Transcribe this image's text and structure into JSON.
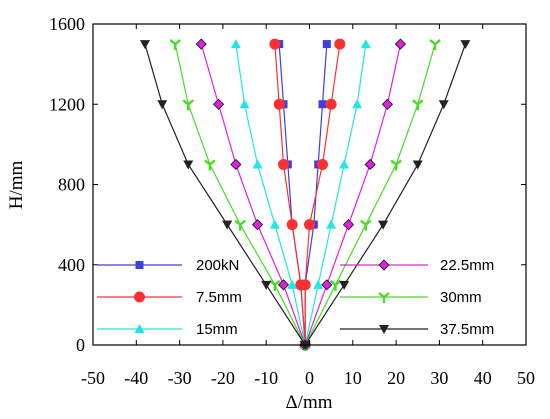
{
  "chart_data": {
    "type": "line",
    "xlabel": "Δ/mm",
    "ylabel": "H/mm",
    "xlim": [
      -50,
      50
    ],
    "ylim": [
      0,
      1600
    ],
    "xticks": [
      -50,
      -40,
      -30,
      -20,
      -10,
      0,
      10,
      20,
      30,
      40,
      50
    ],
    "xtick_labels": [
      "-50",
      "-40",
      "-30",
      "-20",
      "-10",
      "0",
      "10",
      "20",
      "30",
      "40",
      "50"
    ],
    "yticks": [
      0,
      400,
      800,
      1200,
      1600
    ],
    "ytick_labels": [
      "0",
      "400",
      "800",
      "1200",
      "1600"
    ],
    "grid": false,
    "legend_position": "bottom",
    "series": [
      {
        "name": "200kN",
        "color": "#3f3fdf",
        "marker": "square",
        "left": [
          [
            -1,
            0
          ],
          [
            -2,
            300
          ],
          [
            -4,
            600
          ],
          [
            -5,
            900
          ],
          [
            -6,
            1200
          ],
          [
            -7,
            1500
          ]
        ],
        "right": [
          [
            -1,
            0
          ],
          [
            -1,
            300
          ],
          [
            1,
            600
          ],
          [
            2,
            900
          ],
          [
            3,
            1200
          ],
          [
            4,
            1500
          ]
        ]
      },
      {
        "name": "7.5mm",
        "color": "#ff3030",
        "marker": "circle",
        "left": [
          [
            -1,
            0
          ],
          [
            -2,
            300
          ],
          [
            -4,
            600
          ],
          [
            -6,
            900
          ],
          [
            -7,
            1200
          ],
          [
            -8,
            1500
          ]
        ],
        "right": [
          [
            -1,
            0
          ],
          [
            -1,
            300
          ],
          [
            0,
            600
          ],
          [
            3,
            900
          ],
          [
            5,
            1200
          ],
          [
            7,
            1500
          ]
        ]
      },
      {
        "name": "15mm",
        "color": "#22e6e6",
        "marker": "triangle-up",
        "left": [
          [
            -1,
            0
          ],
          [
            -4,
            300
          ],
          [
            -8,
            600
          ],
          [
            -12,
            900
          ],
          [
            -15,
            1200
          ],
          [
            -17,
            1500
          ]
        ],
        "right": [
          [
            -1,
            0
          ],
          [
            2,
            300
          ],
          [
            5,
            600
          ],
          [
            8,
            900
          ],
          [
            11,
            1200
          ],
          [
            13,
            1500
          ]
        ]
      },
      {
        "name": "22.5mm",
        "color": "#e020e0",
        "marker": "diamond",
        "left": [
          [
            -1,
            0
          ],
          [
            -6,
            300
          ],
          [
            -12,
            600
          ],
          [
            -17,
            900
          ],
          [
            -21,
            1200
          ],
          [
            -25,
            1500
          ]
        ],
        "right": [
          [
            -1,
            0
          ],
          [
            4,
            300
          ],
          [
            9,
            600
          ],
          [
            14,
            900
          ],
          [
            18,
            1200
          ],
          [
            21,
            1500
          ]
        ]
      },
      {
        "name": "30mm",
        "color": "#44dd22",
        "marker": "tri-star",
        "left": [
          [
            -1,
            0
          ],
          [
            -8,
            300
          ],
          [
            -16,
            600
          ],
          [
            -23,
            900
          ],
          [
            -28,
            1200
          ],
          [
            -31,
            1500
          ]
        ],
        "right": [
          [
            -1,
            0
          ],
          [
            6,
            300
          ],
          [
            13,
            600
          ],
          [
            20,
            900
          ],
          [
            25,
            1200
          ],
          [
            29,
            1500
          ]
        ]
      },
      {
        "name": "37.5mm",
        "color": "#222222",
        "marker": "triangle-down",
        "left": [
          [
            -1,
            0
          ],
          [
            -10,
            300
          ],
          [
            -19,
            600
          ],
          [
            -28,
            900
          ],
          [
            -34,
            1200
          ],
          [
            -38,
            1500
          ]
        ],
        "right": [
          [
            -1,
            0
          ],
          [
            8,
            300
          ],
          [
            17,
            600
          ],
          [
            25,
            900
          ],
          [
            31,
            1200
          ],
          [
            36,
            1500
          ]
        ]
      }
    ]
  }
}
